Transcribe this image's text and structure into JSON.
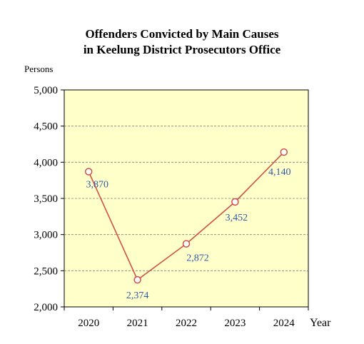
{
  "chart_data": {
    "type": "line",
    "title_line1": "Offenders Convicted by Main Causes",
    "title_line2": "in  Keelung District Prosecutors Office",
    "ylabel": "Persons",
    "xlabel": "Year",
    "x": [
      "2020",
      "2021",
      "2022",
      "2023",
      "2024"
    ],
    "series": [
      {
        "values": [
          3870,
          2374,
          2872,
          3452,
          4140
        ]
      }
    ],
    "data_labels": [
      "3,870",
      "2,374",
      "2,872",
      "3,452",
      "4,140"
    ],
    "yticks": [
      2000,
      2500,
      3000,
      3500,
      4000,
      4500,
      5000
    ],
    "ytick_labels": [
      "2,000",
      "2,500",
      "3,000",
      "3,500",
      "4,000",
      "4,500",
      "5,000"
    ],
    "ylim": [
      2000,
      5000
    ],
    "grid": "horizontal dashed",
    "legend": "none"
  },
  "colors": {
    "plot_bg": "#ffffc9",
    "line": "#d0504a",
    "marker_fill": "#ffffff",
    "data_label": "#2e5aa8",
    "grid": "#808080",
    "axis": "#000000"
  }
}
